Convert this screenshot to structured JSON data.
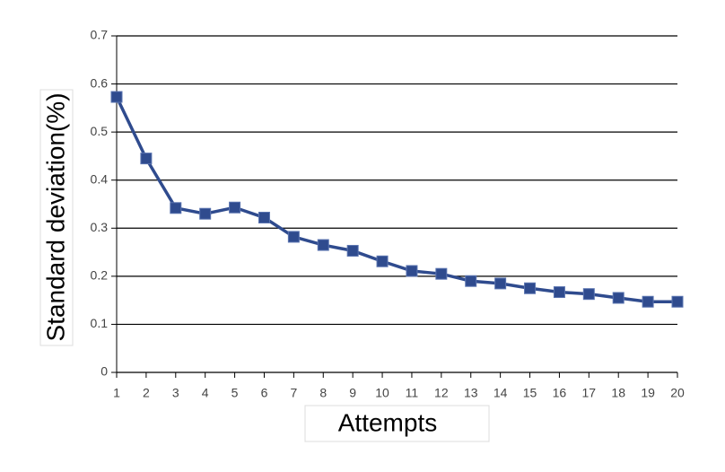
{
  "chart_data": {
    "type": "line",
    "x_label": "Attempts",
    "y_label": "Standard deviation(%)",
    "x": [
      1,
      2,
      3,
      4,
      5,
      6,
      7,
      8,
      9,
      10,
      11,
      12,
      13,
      14,
      15,
      16,
      17,
      18,
      19,
      20
    ],
    "series": [
      {
        "color": "#2f4b8e",
        "values": [
          0.573,
          0.445,
          0.342,
          0.33,
          0.343,
          0.322,
          0.282,
          0.265,
          0.253,
          0.231,
          0.211,
          0.205,
          0.19,
          0.185,
          0.175,
          0.167,
          0.163,
          0.155,
          0.147,
          0.147
        ]
      }
    ],
    "xlim": [
      1,
      20
    ],
    "xticks": [
      1,
      2,
      3,
      4,
      5,
      6,
      7,
      8,
      9,
      10,
      11,
      12,
      13,
      14,
      15,
      16,
      17,
      18,
      19,
      20
    ],
    "ylim": [
      0,
      0.7
    ],
    "yticks": [
      0,
      0.1,
      0.2,
      0.3,
      0.4,
      0.5,
      0.6,
      0.7
    ],
    "grid": true
  }
}
